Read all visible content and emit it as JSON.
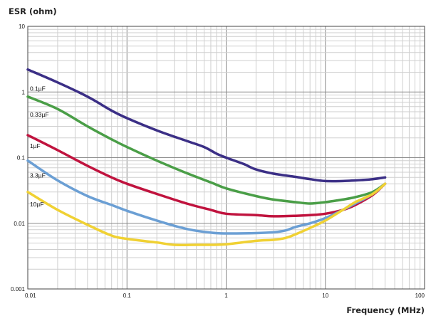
{
  "chart_data": {
    "type": "line",
    "title": "",
    "ylabel": "ESR (ohm)",
    "xlabel": "Frequency (MHz)",
    "x_scale": "log",
    "y_scale": "log",
    "xlim": [
      0.01,
      100
    ],
    "ylim": [
      0.001,
      10
    ],
    "x_ticks": [
      "0.01",
      "0.1",
      "1",
      "10",
      "100"
    ],
    "y_ticks": [
      "0.001",
      "0.01",
      "0.1",
      "1",
      "10"
    ],
    "grid": true,
    "legend": "none",
    "series": [
      {
        "name": "0.1µF",
        "color": "#3b2f86",
        "x": [
          0.01,
          0.02,
          0.04,
          0.07,
          0.1,
          0.2,
          0.4,
          0.6,
          0.8,
          1,
          1.5,
          2,
          3,
          5,
          7,
          10,
          15,
          20,
          30,
          40
        ],
        "y": [
          2.2,
          1.4,
          0.85,
          0.52,
          0.4,
          0.26,
          0.18,
          0.145,
          0.115,
          0.1,
          0.08,
          0.066,
          0.057,
          0.051,
          0.047,
          0.044,
          0.044,
          0.045,
          0.047,
          0.05
        ]
      },
      {
        "name": "0.33µF",
        "color": "#4a9e47",
        "x": [
          0.01,
          0.02,
          0.04,
          0.07,
          0.1,
          0.2,
          0.4,
          0.7,
          1,
          2,
          3,
          5,
          7,
          10,
          15,
          20,
          30,
          40
        ],
        "y": [
          0.85,
          0.55,
          0.3,
          0.19,
          0.145,
          0.09,
          0.058,
          0.042,
          0.034,
          0.026,
          0.023,
          0.021,
          0.02,
          0.021,
          0.023,
          0.025,
          0.03,
          0.04
        ]
      },
      {
        "name": "1µF",
        "color": "#c0133e",
        "x": [
          0.01,
          0.02,
          0.04,
          0.07,
          0.1,
          0.2,
          0.4,
          0.7,
          1,
          2,
          3,
          5,
          7,
          10,
          15,
          20,
          30,
          40
        ],
        "y": [
          0.22,
          0.13,
          0.075,
          0.05,
          0.04,
          0.028,
          0.02,
          0.016,
          0.014,
          0.0133,
          0.0128,
          0.013,
          0.0133,
          0.014,
          0.016,
          0.019,
          0.027,
          0.04
        ]
      },
      {
        "name": "3.3µF",
        "color": "#6b9fd4",
        "x": [
          0.01,
          0.02,
          0.04,
          0.07,
          0.1,
          0.2,
          0.4,
          0.7,
          1,
          2,
          3,
          4,
          5,
          7,
          10,
          15,
          20,
          30,
          40
        ],
        "y": [
          0.09,
          0.045,
          0.026,
          0.019,
          0.0155,
          0.011,
          0.0082,
          0.0072,
          0.007,
          0.0071,
          0.0073,
          0.0078,
          0.0088,
          0.01,
          0.012,
          0.016,
          0.02,
          0.028,
          0.04
        ]
      },
      {
        "name": "10µF",
        "color": "#f0d133",
        "x": [
          0.01,
          0.02,
          0.04,
          0.07,
          0.1,
          0.2,
          0.3,
          0.5,
          0.7,
          1,
          2,
          3,
          4,
          5,
          7,
          10,
          15,
          20,
          30,
          40
        ],
        "y": [
          0.03,
          0.016,
          0.0095,
          0.0065,
          0.0058,
          0.0051,
          0.0047,
          0.0047,
          0.0047,
          0.0048,
          0.0054,
          0.0056,
          0.006,
          0.0068,
          0.0085,
          0.011,
          0.016,
          0.021,
          0.028,
          0.04
        ]
      }
    ],
    "annotations": [
      {
        "text": "0.1µF",
        "x": 0.0105,
        "y": 1.05
      },
      {
        "text": "0.33µF",
        "x": 0.0105,
        "y": 0.42
      },
      {
        "text": "1µF",
        "x": 0.0105,
        "y": 0.14
      },
      {
        "text": "3.3µF",
        "x": 0.0105,
        "y": 0.05
      },
      {
        "text": "10µF",
        "x": 0.0105,
        "y": 0.018
      }
    ]
  }
}
